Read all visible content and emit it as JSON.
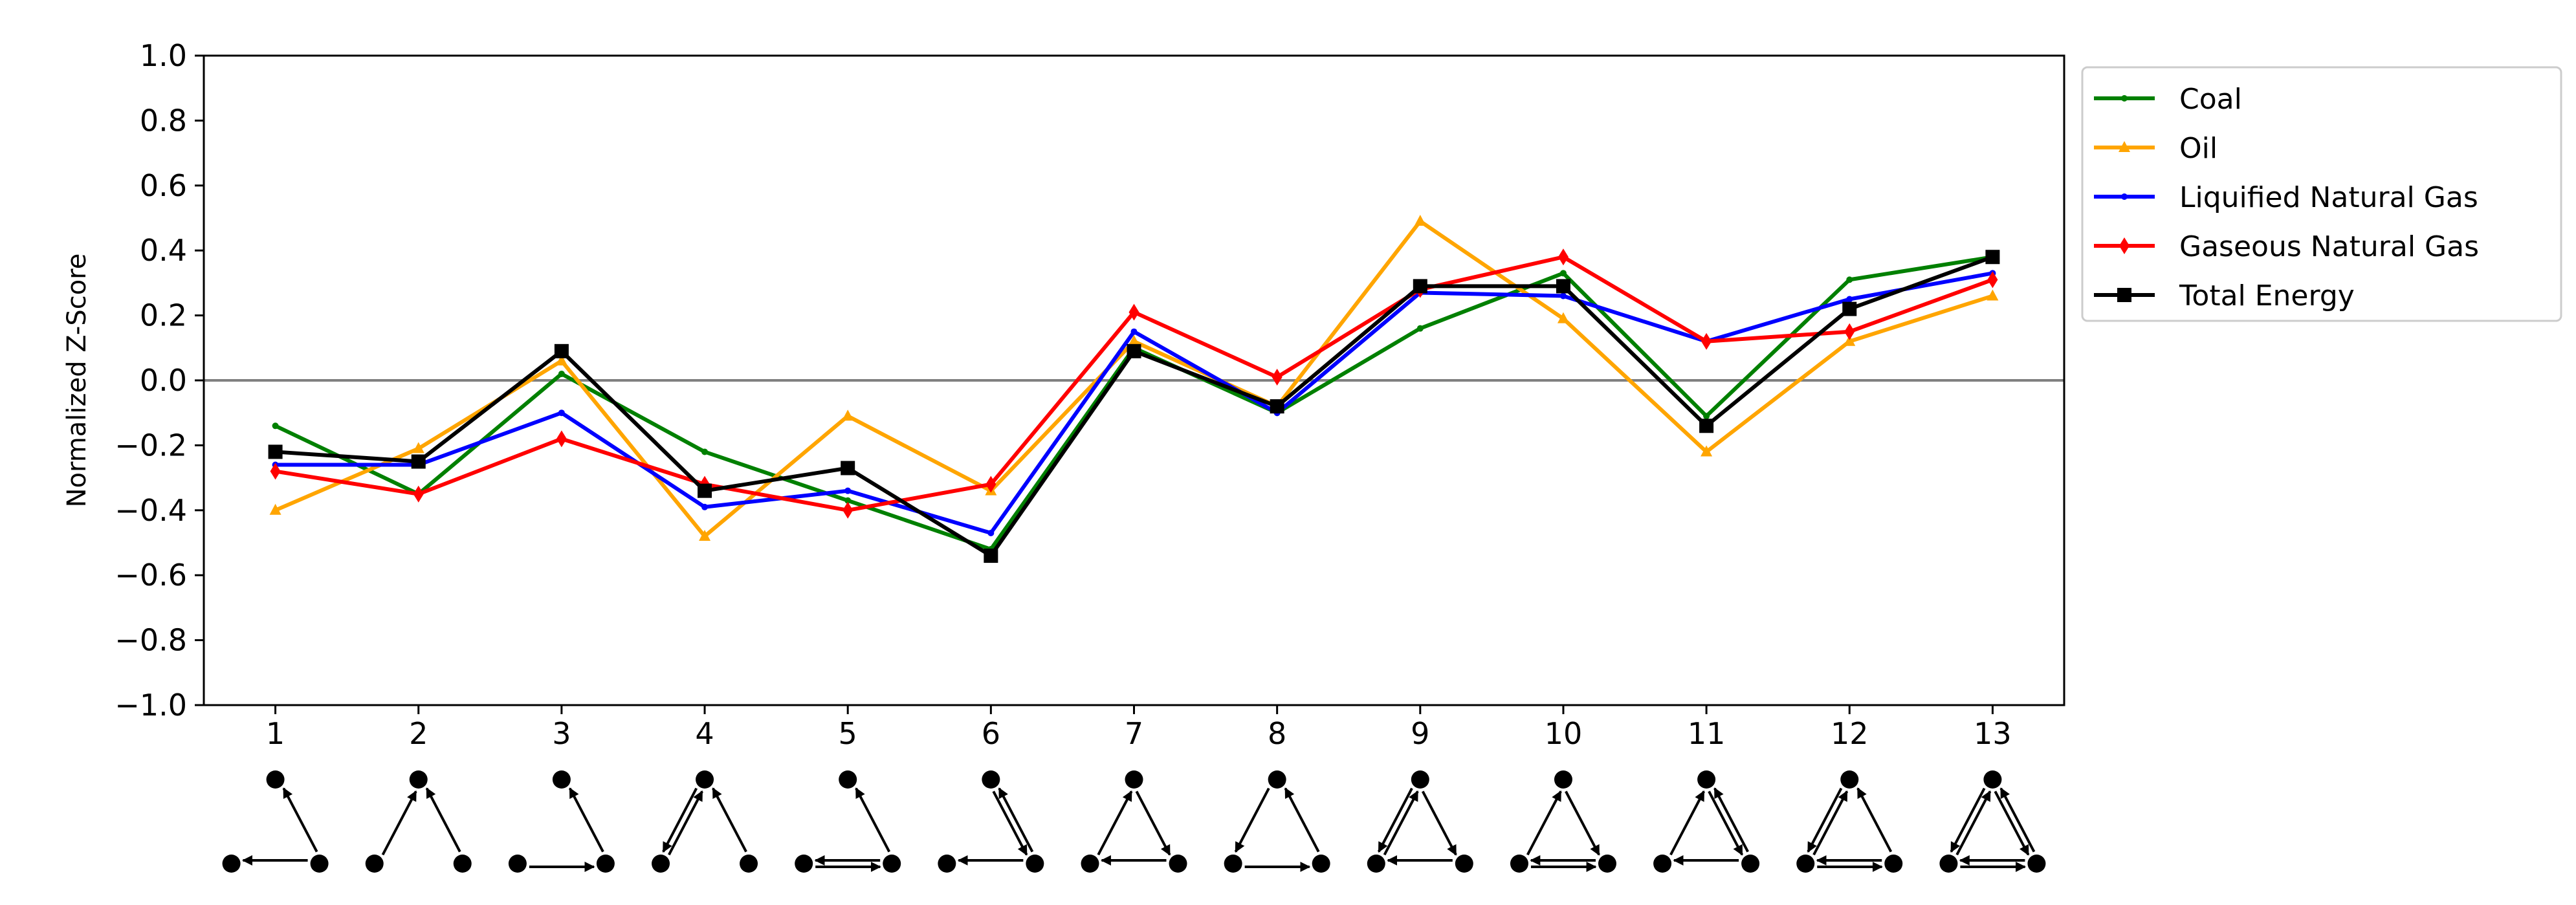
{
  "chart_data": {
    "type": "line",
    "title": "",
    "xlabel": "",
    "ylabel": "Normalized Z-Score",
    "ylim": [
      -1.0,
      1.0
    ],
    "xlim": [
      0.5,
      13.5
    ],
    "yticks": [
      -1.0,
      -0.8,
      -0.6,
      -0.4,
      -0.2,
      0.0,
      0.2,
      0.4,
      0.6,
      0.8,
      1.0
    ],
    "ytick_labels": [
      "−1.0",
      "−0.8",
      "−0.6",
      "−0.4",
      "−0.2",
      "0.0",
      "0.2",
      "0.4",
      "0.6",
      "0.8",
      "1.0"
    ],
    "x": [
      1,
      2,
      3,
      4,
      5,
      6,
      7,
      8,
      9,
      10,
      11,
      12,
      13
    ],
    "xtick_labels": [
      "1",
      "2",
      "3",
      "4",
      "5",
      "6",
      "7",
      "8",
      "9",
      "10",
      "11",
      "12",
      "13"
    ],
    "grid": false,
    "zero_line": true,
    "legend_position": "outside-right-top",
    "series": [
      {
        "name": "Coal",
        "color": "#008000",
        "marker": "tri",
        "values": [
          -0.14,
          -0.35,
          0.02,
          -0.22,
          -0.37,
          -0.52,
          0.1,
          -0.1,
          0.16,
          0.33,
          -0.11,
          0.31,
          0.38
        ]
      },
      {
        "name": "Oil",
        "color": "#FFA500",
        "marker": "triangle",
        "values": [
          -0.4,
          -0.21,
          0.06,
          -0.48,
          -0.11,
          -0.34,
          0.12,
          -0.08,
          0.49,
          0.19,
          -0.22,
          0.12,
          0.26
        ]
      },
      {
        "name": "Liquified Natural Gas",
        "color": "#0000FF",
        "marker": "tri",
        "values": [
          -0.26,
          -0.26,
          -0.1,
          -0.39,
          -0.34,
          -0.47,
          0.15,
          -0.1,
          0.27,
          0.26,
          0.12,
          0.25,
          0.33
        ]
      },
      {
        "name": "Gaseous Natural Gas",
        "color": "#FF0000",
        "marker": "diamond",
        "values": [
          -0.28,
          -0.35,
          -0.18,
          -0.32,
          -0.4,
          -0.32,
          0.21,
          0.01,
          0.28,
          0.38,
          0.12,
          0.15,
          0.31
        ]
      },
      {
        "name": "Total Energy",
        "color": "#000000",
        "marker": "square",
        "values": [
          -0.22,
          -0.25,
          0.09,
          -0.34,
          -0.27,
          -0.54,
          0.09,
          -0.08,
          0.29,
          0.29,
          -0.14,
          0.22,
          0.38
        ]
      }
    ],
    "motif_icons": [
      {
        "id": 1,
        "arrows": [
          [
            "R",
            "T"
          ],
          [
            "R",
            "L"
          ]
        ]
      },
      {
        "id": 2,
        "arrows": [
          [
            "L",
            "T"
          ],
          [
            "R",
            "T"
          ]
        ]
      },
      {
        "id": 3,
        "arrows": [
          [
            "R",
            "T"
          ],
          [
            "L",
            "R"
          ]
        ]
      },
      {
        "id": 4,
        "arrows": [
          [
            "T",
            "L"
          ],
          [
            "L",
            "T"
          ],
          [
            "R",
            "T"
          ]
        ]
      },
      {
        "id": 5,
        "arrows": [
          [
            "R",
            "T"
          ],
          [
            "L",
            "R"
          ],
          [
            "R",
            "L"
          ]
        ]
      },
      {
        "id": 6,
        "arrows": [
          [
            "T",
            "R"
          ],
          [
            "R",
            "T"
          ],
          [
            "R",
            "L"
          ]
        ]
      },
      {
        "id": 7,
        "arrows": [
          [
            "L",
            "T"
          ],
          [
            "T",
            "R"
          ],
          [
            "R",
            "L"
          ]
        ]
      },
      {
        "id": 8,
        "arrows": [
          [
            "T",
            "L"
          ],
          [
            "R",
            "T"
          ],
          [
            "L",
            "R"
          ]
        ]
      },
      {
        "id": 9,
        "arrows": [
          [
            "L",
            "T"
          ],
          [
            "T",
            "L"
          ],
          [
            "T",
            "R"
          ],
          [
            "R",
            "L"
          ]
        ]
      },
      {
        "id": 10,
        "arrows": [
          [
            "L",
            "T"
          ],
          [
            "T",
            "R"
          ],
          [
            "L",
            "R"
          ],
          [
            "R",
            "L"
          ]
        ]
      },
      {
        "id": 11,
        "arrows": [
          [
            "L",
            "T"
          ],
          [
            "T",
            "R"
          ],
          [
            "R",
            "T"
          ],
          [
            "R",
            "L"
          ]
        ]
      },
      {
        "id": 12,
        "arrows": [
          [
            "T",
            "L"
          ],
          [
            "L",
            "T"
          ],
          [
            "R",
            "T"
          ],
          [
            "L",
            "R"
          ],
          [
            "R",
            "L"
          ]
        ]
      },
      {
        "id": 13,
        "arrows": [
          [
            "T",
            "L"
          ],
          [
            "L",
            "T"
          ],
          [
            "T",
            "R"
          ],
          [
            "R",
            "T"
          ],
          [
            "L",
            "R"
          ],
          [
            "R",
            "L"
          ]
        ]
      }
    ]
  }
}
